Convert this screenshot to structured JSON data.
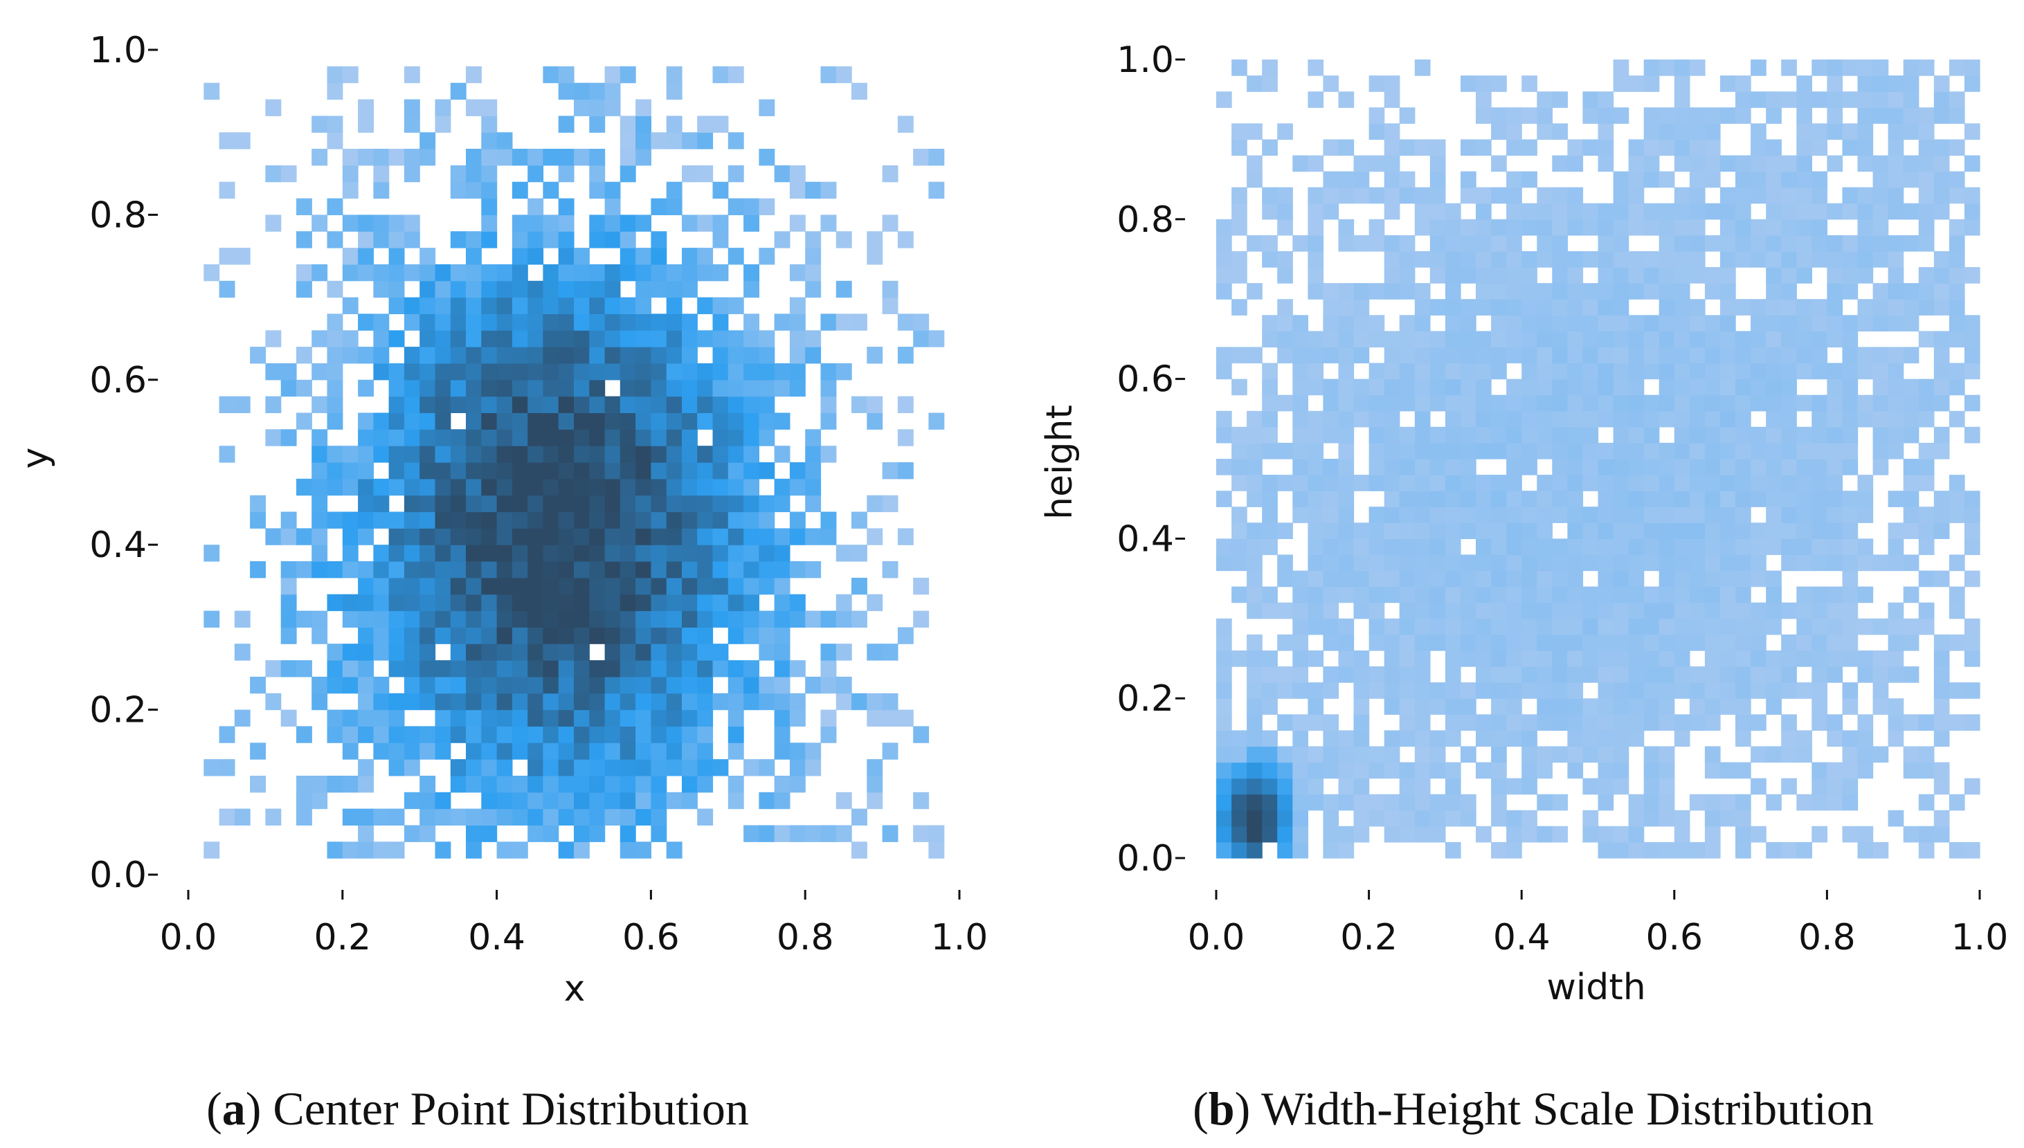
{
  "colors": {
    "light": "#a4c8f1",
    "mid": "#2e9ff0",
    "dark": "#2c4a66",
    "text": "#111111"
  },
  "chart_data": [
    {
      "type": "heatmap",
      "xlabel": "x",
      "ylabel": "y",
      "xlim": [
        0.0,
        1.0
      ],
      "ylim": [
        0.0,
        1.0
      ],
      "xticks": [
        "0.0",
        "0.2",
        "0.4",
        "0.6",
        "0.8",
        "1.0"
      ],
      "yticks": [
        "0.0",
        "0.2",
        "0.4",
        "0.6",
        "0.8",
        "1.0"
      ],
      "bins": 50,
      "grid": false,
      "distribution": "center points concentrated near x=0.48, y=0.42; sparse toward edges",
      "caption": {
        "letter": "a",
        "open": "(",
        "close": ")",
        "text": " Center Point Distribution"
      }
    },
    {
      "type": "heatmap",
      "xlabel": "width",
      "ylabel": "height",
      "xlim": [
        0.0,
        1.0
      ],
      "ylim": [
        0.0,
        1.0
      ],
      "xticks": [
        "0.0",
        "0.2",
        "0.4",
        "0.6",
        "0.8",
        "1.0"
      ],
      "yticks": [
        "0.0",
        "0.2",
        "0.4",
        "0.6",
        "0.8",
        "1.0"
      ],
      "bins": 50,
      "grid": false,
      "distribution": "dense peak near width=0.05, height=0.05; broad light spread over the upper-right",
      "caption": {
        "letter": "b",
        "open": "(",
        "close": ")",
        "text": " Width-Height Scale Distribution"
      }
    }
  ]
}
